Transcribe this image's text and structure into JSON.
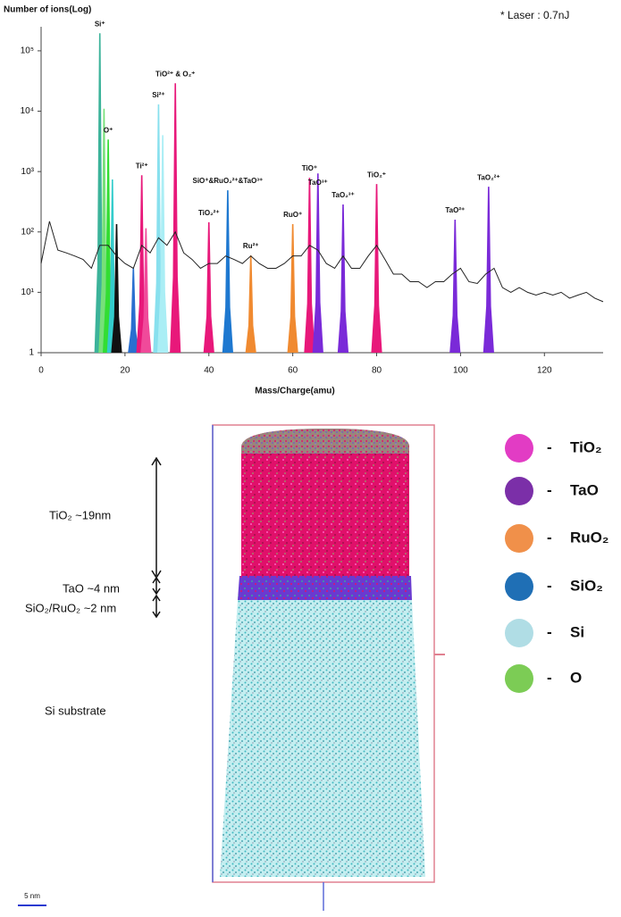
{
  "chart_data": {
    "type": "line",
    "title": "Number of ions(Log)",
    "note": "* Laser : 0.7nJ",
    "xlabel": "Mass/Charge(amu)",
    "log_y": true,
    "color": "#222222",
    "xlim": [
      0,
      134
    ],
    "ylim": [
      1,
      250000
    ],
    "xticks": [
      0,
      20,
      40,
      60,
      80,
      100,
      120
    ],
    "yticks": [
      1,
      {
        "value": 10,
        "label": "10¹"
      },
      {
        "value": 100,
        "label": "10²"
      },
      {
        "value": 1000,
        "label": "10³"
      },
      {
        "value": 10000,
        "label": "10⁴"
      },
      {
        "value": 100000,
        "label": "10⁵"
      }
    ],
    "x": [
      0,
      2,
      4,
      6,
      8,
      10,
      12,
      14,
      16,
      18,
      20,
      22,
      24,
      26,
      28,
      30,
      32,
      34,
      36,
      38,
      40,
      42,
      44,
      46,
      48,
      50,
      52,
      54,
      56,
      58,
      60,
      62,
      64,
      66,
      68,
      70,
      72,
      74,
      76,
      78,
      80,
      82,
      84,
      86,
      88,
      90,
      92,
      94,
      96,
      98,
      100,
      102,
      104,
      106,
      108,
      110,
      112,
      114,
      116,
      118,
      120,
      122,
      124,
      126,
      128,
      130,
      132,
      134
    ],
    "values": [
      30,
      150,
      50,
      45,
      40,
      35,
      25,
      60,
      60,
      40,
      30,
      25,
      60,
      45,
      80,
      60,
      100,
      45,
      35,
      25,
      30,
      30,
      40,
      35,
      30,
      40,
      30,
      25,
      25,
      30,
      40,
      40,
      60,
      50,
      30,
      25,
      40,
      25,
      25,
      40,
      60,
      35,
      20,
      20,
      15,
      15,
      12,
      15,
      15,
      20,
      25,
      15,
      14,
      20,
      25,
      12,
      10,
      12,
      10,
      9,
      10,
      9,
      10,
      8,
      9,
      10,
      8,
      7
    ],
    "peaks": {
      "x": [
        14,
        15,
        16,
        17,
        18,
        22,
        24,
        25,
        28,
        29,
        32,
        40,
        44.5,
        50,
        60,
        64,
        66,
        72,
        80,
        98.7,
        106.7
      ],
      "values": [
        195000,
        11000,
        3400,
        740,
        135,
        25,
        870,
        115,
        13000,
        4000,
        29000,
        145,
        490,
        41,
        135,
        790,
        930,
        285,
        620,
        160,
        560
      ],
      "colors": [
        "#3cb39a",
        "#77e07a",
        "#33dd33",
        "#33cccc",
        "#111111",
        "#2a6fd0",
        "#e8187a",
        "#f04a9a",
        "#88e0ee",
        "#aaeef5",
        "#e8187a",
        "#e8187a",
        "#1e78d0",
        "#f08a30",
        "#f08a30",
        "#e8187a",
        "#7a2ad8",
        "#7a2ad8",
        "#e8187a",
        "#7a2ad8",
        "#7a2ad8"
      ],
      "labels": [
        "Si⁺",
        null,
        "O⁺",
        null,
        null,
        null,
        "Ti²⁺",
        null,
        "Si²⁺",
        null,
        "TiO²⁺ & O₂⁺",
        "TiO₂²⁺",
        "SiO⁺&RuO₂²⁺&TaO³⁺",
        "Ru²⁺",
        "RuO⁺",
        "TiO⁺",
        "TaO³⁺",
        "TaO₂³⁺",
        "TiO₂⁺",
        "TaO²⁺",
        "TaO₂²⁺"
      ]
    }
  },
  "atom_map": {
    "annotations": [
      "TiO₂ ~19nm",
      "TaO ~4 nm",
      "SiO₂/RuO₂ ~2 nm",
      "Si substrate"
    ],
    "legend": [
      {
        "label": "TiO₂",
        "color": "#e23cc4"
      },
      {
        "label": "TaO",
        "color": "#7b2fa8"
      },
      {
        "label": "RuO₂",
        "color": "#f0904a"
      },
      {
        "label": "SiO₂",
        "color": "#1f6fb5"
      },
      {
        "label": "Si",
        "color": "#b0dde5"
      },
      {
        "label": "O",
        "color": "#7ccc55"
      }
    ],
    "legend_dash": "-",
    "scale_bar": "5 nm"
  }
}
